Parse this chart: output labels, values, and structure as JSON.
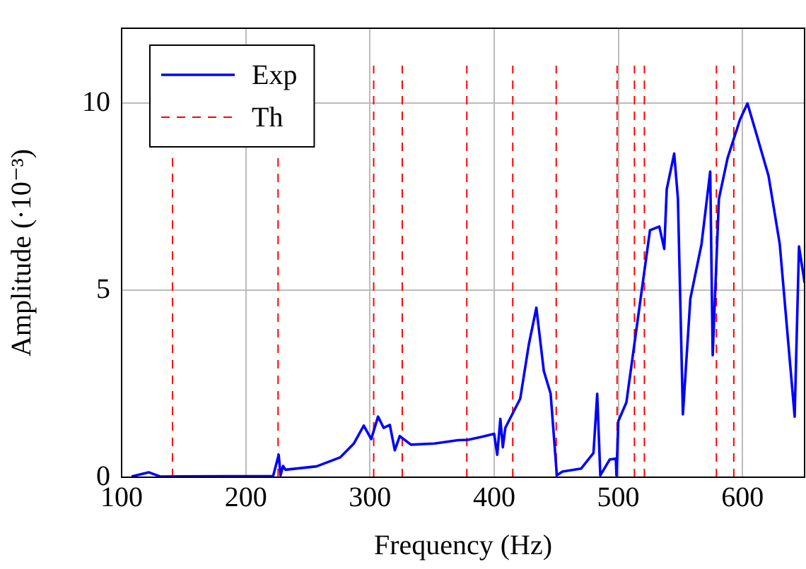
{
  "chart_data": {
    "type": "line",
    "xlabel": "Frequency (Hz)",
    "ylabel": "Amplitude (·10⁻³)",
    "xlim": [
      100,
      650
    ],
    "ylim": [
      0,
      12
    ],
    "xticks": [
      100,
      200,
      300,
      400,
      500,
      600
    ],
    "yticks": [
      0,
      5,
      10
    ],
    "grid": true,
    "legend": "top left",
    "marker": "none",
    "series": [
      {
        "name": "Exp",
        "color": "#0000ff",
        "line_style": "solid",
        "x": [
          108,
          122,
          131,
          222,
          226.5,
          228,
          230,
          232,
          257,
          276,
          287,
          295,
          301,
          306.5,
          311,
          316,
          320,
          324,
          333,
          352,
          371,
          379,
          390,
          400,
          402.5,
          405,
          407,
          409,
          421,
          428,
          434,
          440,
          445.5,
          450.5,
          455,
          470,
          480,
          483,
          485.5,
          493,
          498,
          498.5,
          500,
          506.5,
          516,
          525.5,
          533,
          537,
          539,
          545,
          548,
          552,
          558,
          567,
          574,
          576,
          581,
          588,
          598,
          604,
          611,
          621,
          630,
          642,
          645.5,
          650
        ],
        "values": [
          0.02,
          0.13,
          0.02,
          0.03,
          0.6,
          0.05,
          0.3,
          0.2,
          0.29,
          0.53,
          0.9,
          1.38,
          1.02,
          1.62,
          1.32,
          1.4,
          0.72,
          1.1,
          0.87,
          0.9,
          0.99,
          1.0,
          1.08,
          1.16,
          0.6,
          1.56,
          0.8,
          1.32,
          2.1,
          3.56,
          4.53,
          2.84,
          2.23,
          0.05,
          0.15,
          0.23,
          0.65,
          2.23,
          0.05,
          0.47,
          0.5,
          0.05,
          1.5,
          2.0,
          4.3,
          6.6,
          6.7,
          6.1,
          7.7,
          8.65,
          7.44,
          1.68,
          4.77,
          6.23,
          8.17,
          3.26,
          7.44,
          8.53,
          9.56,
          9.99,
          9.2,
          8.05,
          6.23,
          1.62,
          6.17,
          5.2
        ]
      },
      {
        "name": "Th",
        "color": "#ff0000",
        "line_style": "dashed",
        "x": [
          141,
          141,
          null,
          226,
          226,
          null,
          303,
          303,
          null,
          326,
          326,
          null,
          378,
          378,
          null,
          415,
          415,
          null,
          450,
          450,
          null,
          499,
          499,
          null,
          513,
          513,
          null,
          521,
          521,
          null,
          579,
          579,
          null,
          593,
          593
        ],
        "values": [
          0,
          8.7,
          null,
          0,
          8.7,
          null,
          0,
          11,
          null,
          0,
          11,
          null,
          0,
          11,
          null,
          0,
          11,
          null,
          0,
          11,
          null,
          0,
          11,
          null,
          0,
          11,
          null,
          0,
          11,
          null,
          0,
          11,
          null,
          0,
          11
        ]
      }
    ]
  }
}
